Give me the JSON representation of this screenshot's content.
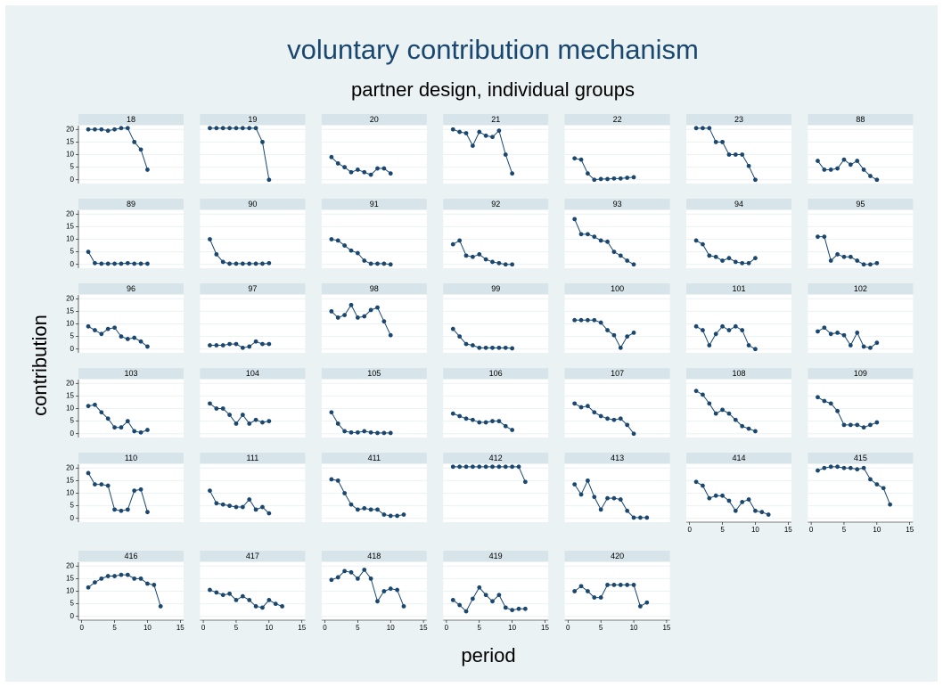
{
  "chart_data": {
    "type": "line",
    "title": "voluntary contribution mechanism",
    "subtitle": "partner design, individual groups",
    "x_label": "period",
    "y_label": "contribution",
    "xlim": [
      -0.5,
      15.5
    ],
    "xticks": [
      0,
      5,
      10,
      15
    ],
    "ylim": [
      -1.5,
      21.5
    ],
    "yticks": [
      0,
      5,
      10,
      15,
      20
    ],
    "grid": true,
    "color": "#1a476f",
    "series": [
      {
        "name": "18",
        "x": [
          1,
          2,
          3,
          4,
          5,
          6,
          7,
          8,
          9,
          10
        ],
        "values": [
          20,
          20,
          20,
          19.5,
          20,
          20.5,
          20.5,
          15,
          12,
          4
        ]
      },
      {
        "name": "19",
        "x": [
          1,
          2,
          3,
          4,
          5,
          6,
          7,
          8,
          9,
          10
        ],
        "values": [
          20.5,
          20.5,
          20.5,
          20.5,
          20.5,
          20.5,
          20.5,
          20.5,
          15,
          0
        ]
      },
      {
        "name": "20",
        "x": [
          1,
          2,
          3,
          4,
          5,
          6,
          7,
          8,
          9,
          10
        ],
        "values": [
          9,
          6.5,
          5,
          3,
          4,
          3,
          2,
          4.5,
          4.5,
          2.5
        ]
      },
      {
        "name": "21",
        "x": [
          1,
          2,
          3,
          4,
          5,
          6,
          7,
          8,
          9,
          10
        ],
        "values": [
          20,
          19,
          18.5,
          13.5,
          19,
          17.5,
          17,
          19.5,
          10,
          2.5
        ]
      },
      {
        "name": "22",
        "x": [
          1,
          2,
          3,
          4,
          5,
          6,
          7,
          8,
          9,
          10
        ],
        "values": [
          8.5,
          8,
          2.5,
          0,
          0.3,
          0.3,
          0.5,
          0.5,
          0.8,
          1
        ]
      },
      {
        "name": "23",
        "x": [
          1,
          2,
          3,
          4,
          5,
          6,
          7,
          8,
          9,
          10
        ],
        "values": [
          20.5,
          20.5,
          20.5,
          15,
          15,
          10,
          10,
          10,
          5.5,
          0
        ]
      },
      {
        "name": "88",
        "x": [
          1,
          2,
          3,
          4,
          5,
          6,
          7,
          8,
          9,
          10
        ],
        "values": [
          7.5,
          4,
          4,
          4.5,
          8,
          6,
          7.5,
          4,
          1.5,
          0
        ]
      },
      {
        "name": "89",
        "x": [
          1,
          2,
          3,
          4,
          5,
          6,
          7,
          8,
          9,
          10
        ],
        "values": [
          5,
          0.5,
          0.3,
          0.3,
          0.3,
          0.3,
          0.5,
          0.3,
          0.3,
          0.3
        ]
      },
      {
        "name": "90",
        "x": [
          1,
          2,
          3,
          4,
          5,
          6,
          7,
          8,
          9,
          10
        ],
        "values": [
          10,
          4,
          1,
          0.3,
          0.3,
          0.3,
          0.3,
          0.3,
          0.3,
          0.5
        ]
      },
      {
        "name": "91",
        "x": [
          1,
          2,
          3,
          4,
          5,
          6,
          7,
          8,
          9,
          10
        ],
        "values": [
          10,
          9.5,
          7.5,
          5.5,
          4.5,
          1.5,
          0.3,
          0.3,
          0.3,
          0
        ]
      },
      {
        "name": "92",
        "x": [
          1,
          2,
          3,
          4,
          5,
          6,
          7,
          8,
          9,
          10
        ],
        "values": [
          8,
          9.5,
          3.5,
          3,
          4,
          2,
          1,
          0.5,
          0,
          0
        ]
      },
      {
        "name": "93",
        "x": [
          1,
          2,
          3,
          4,
          5,
          6,
          7,
          8,
          9,
          10
        ],
        "values": [
          18,
          12,
          12,
          11,
          9.5,
          9,
          5,
          3.5,
          1.5,
          0
        ]
      },
      {
        "name": "94",
        "x": [
          1,
          2,
          3,
          4,
          5,
          6,
          7,
          8,
          9,
          10
        ],
        "values": [
          9.5,
          8,
          3.5,
          3,
          1.5,
          2.5,
          1,
          0.5,
          0.5,
          2.5
        ]
      },
      {
        "name": "95",
        "x": [
          1,
          2,
          3,
          4,
          5,
          6,
          7,
          8,
          9,
          10
        ],
        "values": [
          11,
          11,
          1.5,
          4,
          3,
          3,
          1.5,
          0,
          0,
          0.5
        ]
      },
      {
        "name": "96",
        "x": [
          1,
          2,
          3,
          4,
          5,
          6,
          7,
          8,
          9,
          10
        ],
        "values": [
          9,
          7.5,
          6,
          8,
          8.5,
          5,
          4,
          4.5,
          3,
          1
        ]
      },
      {
        "name": "97",
        "x": [
          1,
          2,
          3,
          4,
          5,
          6,
          7,
          8,
          9,
          10
        ],
        "values": [
          1.5,
          1.5,
          1.5,
          2,
          2,
          0.5,
          1,
          3,
          2,
          2
        ]
      },
      {
        "name": "98",
        "x": [
          1,
          2,
          3,
          4,
          5,
          6,
          7,
          8,
          9,
          10
        ],
        "values": [
          15,
          12.5,
          13.5,
          17.5,
          12.5,
          13,
          15.5,
          16.5,
          11,
          5.5
        ]
      },
      {
        "name": "99",
        "x": [
          1,
          2,
          3,
          4,
          5,
          6,
          7,
          8,
          9,
          10
        ],
        "values": [
          8,
          5,
          2,
          1.5,
          0.5,
          0.5,
          0.5,
          0.5,
          0.5,
          0.3
        ]
      },
      {
        "name": "100",
        "x": [
          1,
          2,
          3,
          4,
          5,
          6,
          7,
          8,
          9,
          10
        ],
        "values": [
          11.5,
          11.5,
          11.5,
          11.5,
          10.5,
          7.5,
          5.5,
          0.5,
          5,
          6.5
        ]
      },
      {
        "name": "101",
        "x": [
          1,
          2,
          3,
          4,
          5,
          6,
          7,
          8,
          9,
          10
        ],
        "values": [
          9,
          7.5,
          1.5,
          6,
          9,
          7.5,
          9,
          7.5,
          1.5,
          0
        ]
      },
      {
        "name": "102",
        "x": [
          1,
          2,
          3,
          4,
          5,
          6,
          7,
          8,
          9,
          10
        ],
        "values": [
          7,
          8.5,
          6,
          6.5,
          5.5,
          1.5,
          6.5,
          1,
          0.5,
          2.5
        ]
      },
      {
        "name": "103",
        "x": [
          1,
          2,
          3,
          4,
          5,
          6,
          7,
          8,
          9,
          10
        ],
        "values": [
          11,
          11.5,
          8.5,
          6,
          2.5,
          2.5,
          5,
          1,
          0.5,
          1.5
        ]
      },
      {
        "name": "104",
        "x": [
          1,
          2,
          3,
          4,
          5,
          6,
          7,
          8,
          9,
          10
        ],
        "values": [
          12,
          10,
          10,
          7.5,
          4,
          7.5,
          4,
          5.5,
          4.5,
          5
        ]
      },
      {
        "name": "105",
        "x": [
          1,
          2,
          3,
          4,
          5,
          6,
          7,
          8,
          9,
          10
        ],
        "values": [
          8.5,
          4,
          1,
          0.5,
          0.5,
          1,
          0.5,
          0.3,
          0.3,
          0.3
        ]
      },
      {
        "name": "106",
        "x": [
          1,
          2,
          3,
          4,
          5,
          6,
          7,
          8,
          9,
          10
        ],
        "values": [
          8,
          7,
          6,
          5.5,
          4.5,
          4.5,
          5,
          5,
          3,
          1.5
        ]
      },
      {
        "name": "107",
        "x": [
          1,
          2,
          3,
          4,
          5,
          6,
          7,
          8,
          9,
          10
        ],
        "values": [
          12,
          10.5,
          11,
          8.5,
          7,
          6,
          5.5,
          6,
          3.5,
          0
        ]
      },
      {
        "name": "108",
        "x": [
          1,
          2,
          3,
          4,
          5,
          6,
          7,
          8,
          9,
          10
        ],
        "values": [
          17,
          15.5,
          12,
          8,
          9.5,
          8,
          5.5,
          3,
          2,
          1
        ]
      },
      {
        "name": "109",
        "x": [
          1,
          2,
          3,
          4,
          5,
          6,
          7,
          8,
          9,
          10
        ],
        "values": [
          14.5,
          13,
          12,
          9,
          3.5,
          3.5,
          3.5,
          2.5,
          3.5,
          4.5
        ]
      },
      {
        "name": "110",
        "x": [
          1,
          2,
          3,
          4,
          5,
          6,
          7,
          8,
          9,
          10
        ],
        "values": [
          18,
          13.5,
          13.5,
          13,
          3.5,
          3,
          3.5,
          11,
          11.5,
          2.5
        ]
      },
      {
        "name": "111",
        "x": [
          1,
          2,
          3,
          4,
          5,
          6,
          7,
          8,
          9,
          10
        ],
        "values": [
          11,
          6,
          5.5,
          5,
          4.5,
          4.5,
          7.5,
          3.5,
          4.5,
          2
        ]
      },
      {
        "name": "411",
        "x": [
          1,
          2,
          3,
          4,
          5,
          6,
          7,
          8,
          9,
          10,
          11,
          12
        ],
        "values": [
          15.5,
          15,
          10,
          5.5,
          3.5,
          4,
          3.5,
          3.5,
          1.5,
          1,
          1,
          1.5
        ]
      },
      {
        "name": "412",
        "x": [
          1,
          2,
          3,
          4,
          5,
          6,
          7,
          8,
          9,
          10,
          11,
          12
        ],
        "values": [
          20.5,
          20.5,
          20.5,
          20.5,
          20.5,
          20.5,
          20.5,
          20.5,
          20.5,
          20.5,
          20.5,
          14.5
        ]
      },
      {
        "name": "413",
        "x": [
          1,
          2,
          3,
          4,
          5,
          6,
          7,
          8,
          9,
          10,
          11,
          12
        ],
        "values": [
          13.5,
          9.5,
          15,
          8.5,
          3.5,
          8,
          8,
          7.5,
          3,
          0.3,
          0.3,
          0.3
        ]
      },
      {
        "name": "414",
        "x": [
          1,
          2,
          3,
          4,
          5,
          6,
          7,
          8,
          9,
          10,
          11,
          12
        ],
        "values": [
          14.5,
          13,
          8,
          9,
          9,
          7,
          3,
          6.5,
          7.5,
          3,
          2.5,
          1.5
        ]
      },
      {
        "name": "415",
        "x": [
          1,
          2,
          3,
          4,
          5,
          6,
          7,
          8,
          9,
          10,
          11,
          12
        ],
        "values": [
          19,
          20,
          20.5,
          20.5,
          20,
          20,
          19.5,
          20,
          15.5,
          13.5,
          12,
          5.5
        ]
      },
      {
        "name": "416",
        "x": [
          1,
          2,
          3,
          4,
          5,
          6,
          7,
          8,
          9,
          10,
          11,
          12
        ],
        "values": [
          11.5,
          13.5,
          15,
          16,
          16,
          16.5,
          16.5,
          15,
          15,
          13,
          12.5,
          4
        ]
      },
      {
        "name": "417",
        "x": [
          1,
          2,
          3,
          4,
          5,
          6,
          7,
          8,
          9,
          10,
          11,
          12
        ],
        "values": [
          10.5,
          9.5,
          8.5,
          9,
          6.5,
          8,
          6.5,
          4,
          3.5,
          6.5,
          5,
          4
        ]
      },
      {
        "name": "418",
        "x": [
          1,
          2,
          3,
          4,
          5,
          6,
          7,
          8,
          9,
          10,
          11,
          12
        ],
        "values": [
          14.5,
          15.5,
          18,
          17.5,
          15,
          18.5,
          15,
          6,
          10,
          11,
          10.5,
          4
        ]
      },
      {
        "name": "419",
        "x": [
          1,
          2,
          3,
          4,
          5,
          6,
          7,
          8,
          9,
          10,
          11,
          12
        ],
        "values": [
          6.5,
          4.5,
          2,
          7,
          11.5,
          8.5,
          6,
          8.5,
          3.5,
          2.5,
          3,
          3
        ]
      },
      {
        "name": "420",
        "x": [
          1,
          2,
          3,
          4,
          5,
          6,
          7,
          8,
          9,
          10,
          11,
          12
        ],
        "values": [
          10,
          12,
          10,
          7.5,
          7.5,
          12.5,
          12.5,
          12.5,
          12.5,
          12.5,
          4,
          5.5
        ]
      }
    ]
  }
}
